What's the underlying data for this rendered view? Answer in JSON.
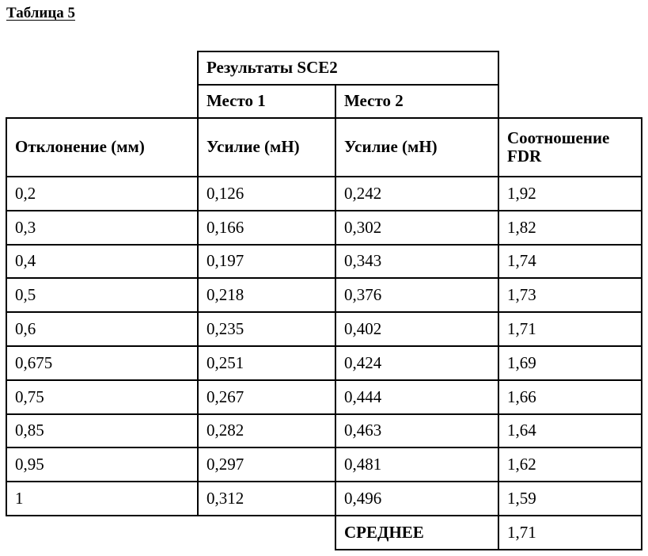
{
  "caption": "Таблица 5",
  "header": {
    "group_title": "Результаты SCE2",
    "place1": "Место 1",
    "place2": "Место 2",
    "col_deviation": "Отклонение (мм)",
    "col_force1": "Усилие (мН)",
    "col_force2": "Усилие (мН)",
    "col_ratio": "Соотношение FDR"
  },
  "rows": [
    {
      "deviation": "0,2",
      "force1": "0,126",
      "force2": "0,242",
      "ratio": "1,92"
    },
    {
      "deviation": "0,3",
      "force1": "0,166",
      "force2": "0,302",
      "ratio": "1,82"
    },
    {
      "deviation": "0,4",
      "force1": "0,197",
      "force2": "0,343",
      "ratio": "1,74"
    },
    {
      "deviation": "0,5",
      "force1": "0,218",
      "force2": "0,376",
      "ratio": "1,73"
    },
    {
      "deviation": "0,6",
      "force1": "0,235",
      "force2": "0,402",
      "ratio": "1,71"
    },
    {
      "deviation": "0,675",
      "force1": "0,251",
      "force2": "0,424",
      "ratio": "1,69"
    },
    {
      "deviation": "0,75",
      "force1": "0,267",
      "force2": "0,444",
      "ratio": "1,66"
    },
    {
      "deviation": "0,85",
      "force1": "0,282",
      "force2": "0,463",
      "ratio": "1,64"
    },
    {
      "deviation": "0,95",
      "force1": "0,297",
      "force2": "0,481",
      "ratio": "1,62"
    },
    {
      "deviation": "1",
      "force1": "0,312",
      "force2": "0,496",
      "ratio": "1,59"
    }
  ],
  "footer": {
    "average_label": "СРЕДНЕЕ",
    "average_value": "1,71"
  }
}
